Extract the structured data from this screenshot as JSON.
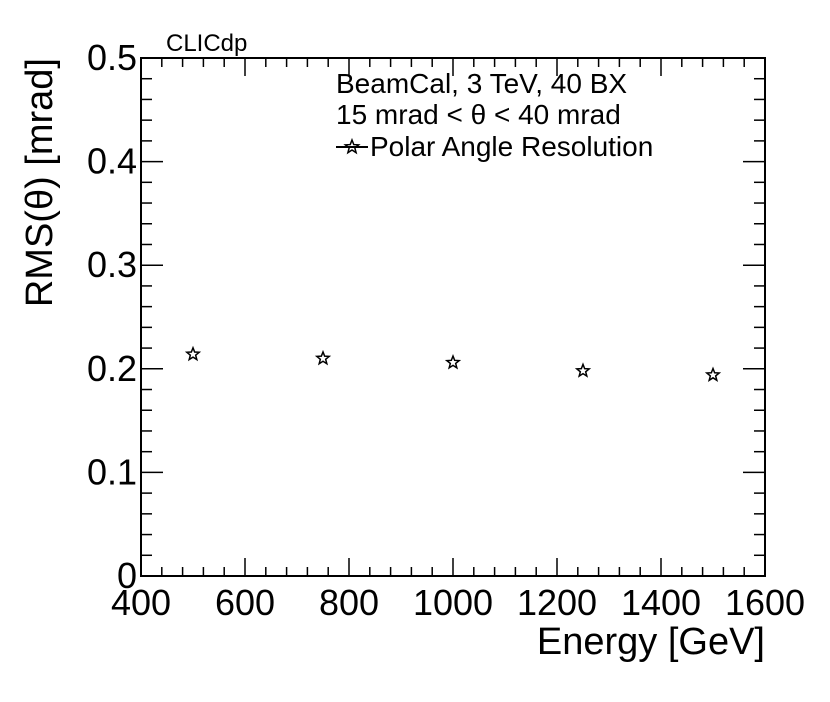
{
  "chart_data": {
    "type": "scatter",
    "experiment_label": "CLICdp",
    "xlabel": "Energy [GeV]",
    "ylabel": "RMS(θ) [mrad]",
    "xlim": [
      400,
      1600
    ],
    "ylim": [
      0,
      0.5
    ],
    "x_ticks": [
      400,
      600,
      800,
      1000,
      1200,
      1400,
      1600
    ],
    "y_ticks": [
      0,
      0.1,
      0.2,
      0.3,
      0.4,
      0.5
    ],
    "y_tick_labels": [
      "0",
      "0.1",
      "0.2",
      "0.3",
      "0.4",
      "0.5"
    ],
    "grid": false,
    "annotations": [
      "BeamCal, 3 TeV, 40 BX",
      "15 mrad < θ < 40 mrad"
    ],
    "legend_position": "top-right",
    "series": [
      {
        "name": "Polar Angle Resolution",
        "marker": "open-star",
        "color": "#000000",
        "x": [
          500,
          750,
          1000,
          1250,
          1500
        ],
        "y": [
          0.214,
          0.21,
          0.206,
          0.198,
          0.194
        ],
        "y_err": [
          0.003,
          0.002,
          0.002,
          0.002,
          0.002
        ]
      }
    ]
  }
}
